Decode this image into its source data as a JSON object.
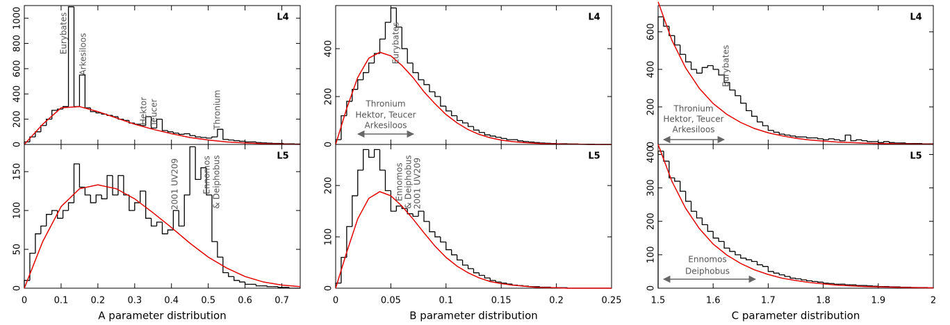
{
  "chart_data": [
    {
      "type": "histogram",
      "label": "L4",
      "color": "#000000",
      "bins": [
        0,
        0.015,
        0.03,
        0.045,
        0.06,
        0.075,
        0.09,
        0.105,
        0.12,
        0.135,
        0.15,
        0.165,
        0.18,
        0.195,
        0.21,
        0.225,
        0.24,
        0.255,
        0.27,
        0.285,
        0.3,
        0.315,
        0.33,
        0.345,
        0.36,
        0.375,
        0.39,
        0.405,
        0.42,
        0.435,
        0.45,
        0.465,
        0.48,
        0.495,
        0.51,
        0.525,
        0.54,
        0.555,
        0.57,
        0.585,
        0.6,
        0.615,
        0.63,
        0.645,
        0.66,
        0.675,
        0.69,
        0.705,
        0.72,
        0.735,
        0.75
      ],
      "values": [
        20,
        60,
        100,
        150,
        200,
        270,
        280,
        300,
        1090,
        300,
        550,
        290,
        260,
        250,
        240,
        230,
        220,
        200,
        190,
        170,
        160,
        150,
        220,
        130,
        200,
        110,
        100,
        90,
        80,
        85,
        70,
        60,
        55,
        50,
        60,
        120,
        40,
        35,
        30,
        25,
        20,
        20,
        15,
        12,
        10,
        8,
        8,
        5,
        5,
        3
      ],
      "fit": {
        "color": "#e30000",
        "x": [
          0,
          0.05,
          0.1,
          0.15,
          0.2,
          0.25,
          0.3,
          0.35,
          0.4,
          0.45,
          0.5,
          0.55,
          0.6,
          0.65,
          0.7,
          0.75
        ],
        "values": [
          0,
          160,
          290,
          300,
          260,
          210,
          160,
          120,
          85,
          55,
          35,
          20,
          12,
          6,
          3,
          1
        ]
      },
      "xlim": [
        0,
        0.75
      ],
      "ylim": [
        0,
        1100
      ],
      "yticks": [
        0,
        200,
        400,
        600,
        800,
        1000
      ],
      "annotations": [
        "Eurybates",
        "Arkesiloos",
        "Hektor",
        "Teucer",
        "Thronium"
      ]
    },
    {
      "type": "histogram",
      "label": "L5",
      "color": "#000000",
      "bins": [
        0,
        0.015,
        0.03,
        0.045,
        0.06,
        0.075,
        0.09,
        0.105,
        0.12,
        0.135,
        0.15,
        0.165,
        0.18,
        0.195,
        0.21,
        0.225,
        0.24,
        0.255,
        0.27,
        0.285,
        0.3,
        0.315,
        0.33,
        0.345,
        0.36,
        0.375,
        0.39,
        0.405,
        0.42,
        0.435,
        0.45,
        0.465,
        0.48,
        0.495,
        0.51,
        0.525,
        0.54,
        0.555,
        0.57,
        0.585,
        0.6,
        0.615,
        0.63,
        0.645,
        0.66,
        0.675,
        0.69,
        0.705,
        0.72,
        0.735,
        0.75
      ],
      "values": [
        10,
        45,
        70,
        80,
        95,
        100,
        90,
        100,
        110,
        160,
        130,
        120,
        110,
        120,
        115,
        145,
        120,
        145,
        120,
        100,
        110,
        125,
        90,
        80,
        85,
        70,
        75,
        100,
        80,
        120,
        182,
        140,
        155,
        120,
        60,
        40,
        20,
        15,
        10,
        8,
        5,
        5,
        3,
        3,
        2,
        2,
        1,
        1,
        0,
        0
      ],
      "fit": {
        "color": "#e30000",
        "x": [
          0,
          0.05,
          0.1,
          0.15,
          0.2,
          0.25,
          0.3,
          0.35,
          0.4,
          0.45,
          0.5,
          0.55,
          0.6,
          0.65,
          0.7,
          0.75
        ],
        "values": [
          0,
          60,
          105,
          128,
          133,
          128,
          115,
          97,
          78,
          58,
          40,
          26,
          15,
          8,
          4,
          2
        ]
      },
      "xlim": [
        0,
        0.75
      ],
      "ylim": [
        0,
        185
      ],
      "yticks": [
        0,
        50,
        100,
        150
      ],
      "xticks": [
        0,
        0.1,
        0.2,
        0.3,
        0.4,
        0.5,
        0.6,
        0.7
      ],
      "xlabel": "A parameter distribution",
      "annotations": [
        "2001 UV209",
        "Ennomos",
        "& Deiphobus"
      ]
    },
    {
      "type": "histogram",
      "label": "L4",
      "color": "#000000",
      "bins": [
        0,
        0.005,
        0.01,
        0.015,
        0.02,
        0.025,
        0.03,
        0.035,
        0.04,
        0.045,
        0.05,
        0.055,
        0.06,
        0.065,
        0.07,
        0.075,
        0.08,
        0.085,
        0.09,
        0.095,
        0.1,
        0.105,
        0.11,
        0.115,
        0.12,
        0.125,
        0.13,
        0.135,
        0.14,
        0.145,
        0.15,
        0.155,
        0.16,
        0.165,
        0.17,
        0.175,
        0.18,
        0.185,
        0.19,
        0.195,
        0.2,
        0.205,
        0.21,
        0.215,
        0.22,
        0.225,
        0.23,
        0.235,
        0.24,
        0.245,
        0.25
      ],
      "values": [
        20,
        120,
        180,
        230,
        270,
        300,
        340,
        380,
        440,
        510,
        570,
        490,
        400,
        340,
        300,
        270,
        250,
        220,
        200,
        160,
        140,
        120,
        100,
        90,
        75,
        60,
        50,
        40,
        35,
        30,
        25,
        20,
        20,
        15,
        12,
        10,
        8,
        6,
        5,
        4,
        3,
        3,
        2,
        2,
        1,
        1,
        1,
        0,
        0,
        0
      ],
      "fit": {
        "color": "#e30000",
        "x": [
          0,
          0.01,
          0.02,
          0.03,
          0.04,
          0.05,
          0.06,
          0.07,
          0.08,
          0.09,
          0.1,
          0.11,
          0.12,
          0.13,
          0.14,
          0.15,
          0.16,
          0.17,
          0.18,
          0.19,
          0.2,
          0.21,
          0.22,
          0.23,
          0.24,
          0.25
        ],
        "values": [
          0,
          150,
          280,
          360,
          385,
          370,
          330,
          280,
          220,
          170,
          125,
          90,
          62,
          42,
          28,
          18,
          12,
          8,
          5,
          3,
          2,
          1,
          1,
          0,
          0,
          0
        ]
      },
      "xlim": [
        0,
        0.25
      ],
      "ylim": [
        0,
        580
      ],
      "yticks": [
        0,
        200,
        400
      ],
      "annotations": [
        "Eurybates",
        "Thronium",
        "Hektor, Teucer",
        "Arkesiloos"
      ]
    },
    {
      "type": "histogram",
      "label": "L5",
      "color": "#000000",
      "bins": [
        0,
        0.005,
        0.01,
        0.015,
        0.02,
        0.025,
        0.03,
        0.035,
        0.04,
        0.045,
        0.05,
        0.055,
        0.06,
        0.065,
        0.07,
        0.075,
        0.08,
        0.085,
        0.09,
        0.095,
        0.1,
        0.105,
        0.11,
        0.115,
        0.12,
        0.125,
        0.13,
        0.135,
        0.14,
        0.145,
        0.15,
        0.155,
        0.16,
        0.165,
        0.17,
        0.175,
        0.18,
        0.185,
        0.19,
        0.195,
        0.2,
        0.205,
        0.21,
        0.215,
        0.22,
        0.225,
        0.23,
        0.235,
        0.24,
        0.245,
        0.25
      ],
      "values": [
        10,
        60,
        120,
        180,
        230,
        270,
        255,
        270,
        230,
        190,
        150,
        160,
        155,
        145,
        140,
        150,
        130,
        110,
        100,
        90,
        75,
        65,
        55,
        45,
        38,
        30,
        25,
        20,
        15,
        12,
        10,
        8,
        6,
        5,
        4,
        3,
        3,
        2,
        2,
        1,
        1,
        1,
        0,
        0,
        0,
        0,
        0,
        0,
        0,
        0
      ],
      "fit": {
        "color": "#e30000",
        "x": [
          0,
          0.01,
          0.02,
          0.03,
          0.04,
          0.05,
          0.06,
          0.07,
          0.08,
          0.09,
          0.1,
          0.11,
          0.12,
          0.13,
          0.14,
          0.15,
          0.16,
          0.17,
          0.18,
          0.19,
          0.2,
          0.21,
          0.22,
          0.23,
          0.24,
          0.25
        ],
        "values": [
          0,
          70,
          135,
          175,
          188,
          180,
          160,
          135,
          108,
          82,
          60,
          43,
          30,
          20,
          13,
          9,
          6,
          4,
          2,
          1,
          1,
          0,
          0,
          0,
          0,
          0
        ]
      },
      "xlim": [
        0,
        0.25
      ],
      "ylim": [
        0,
        280
      ],
      "yticks": [
        0,
        100,
        200
      ],
      "xticks": [
        0,
        0.05,
        0.1,
        0.15,
        0.2,
        0.25
      ],
      "xlabel": "B parameter distribution",
      "annotations": [
        "Ennomos",
        "& Deiphobus",
        "2001 UV209"
      ]
    },
    {
      "type": "histogram",
      "label": "L4",
      "color": "#000000",
      "bins": [
        1.5,
        1.51,
        1.52,
        1.53,
        1.54,
        1.55,
        1.56,
        1.57,
        1.58,
        1.59,
        1.6,
        1.61,
        1.62,
        1.63,
        1.64,
        1.65,
        1.66,
        1.67,
        1.68,
        1.69,
        1.7,
        1.71,
        1.72,
        1.73,
        1.74,
        1.75,
        1.76,
        1.77,
        1.78,
        1.79,
        1.8,
        1.81,
        1.82,
        1.83,
        1.84,
        1.85,
        1.86,
        1.87,
        1.88,
        1.89,
        1.9,
        1.91,
        1.92,
        1.93,
        1.94,
        1.95,
        1.96,
        1.97,
        1.98,
        1.99,
        2
      ],
      "values": [
        680,
        630,
        580,
        530,
        480,
        440,
        400,
        380,
        410,
        420,
        400,
        370,
        330,
        290,
        260,
        220,
        180,
        150,
        120,
        100,
        75,
        65,
        55,
        50,
        45,
        40,
        40,
        35,
        35,
        30,
        25,
        30,
        25,
        20,
        50,
        20,
        25,
        20,
        15,
        15,
        10,
        15,
        10,
        8,
        8,
        5,
        5,
        5,
        3,
        3
      ],
      "fit": {
        "color": "#e30000",
        "x": [
          1.5,
          1.525,
          1.55,
          1.575,
          1.6,
          1.625,
          1.65,
          1.675,
          1.7,
          1.725,
          1.75,
          1.775,
          1.8,
          1.825,
          1.85,
          1.875,
          1.9,
          1.925,
          1.95,
          1.975,
          2
        ],
        "values": [
          760,
          555,
          408,
          298,
          218,
          160,
          117,
          85,
          62,
          46,
          33,
          24,
          18,
          13,
          10,
          7,
          5,
          4,
          3,
          2,
          1.5
        ]
      },
      "xlim": [
        1.5,
        2
      ],
      "ylim": [
        0,
        740
      ],
      "yticks": [
        0,
        200,
        400,
        600
      ],
      "annotations": [
        "Eurybates",
        "Thronium",
        "Hektor, Teucer",
        "Arkesiloos"
      ]
    },
    {
      "type": "histogram",
      "label": "L5",
      "color": "#000000",
      "bins": [
        1.5,
        1.51,
        1.52,
        1.53,
        1.54,
        1.55,
        1.56,
        1.57,
        1.58,
        1.59,
        1.6,
        1.61,
        1.62,
        1.63,
        1.64,
        1.65,
        1.66,
        1.67,
        1.68,
        1.69,
        1.7,
        1.71,
        1.72,
        1.73,
        1.74,
        1.75,
        1.76,
        1.77,
        1.78,
        1.79,
        1.8,
        1.81,
        1.82,
        1.83,
        1.84,
        1.85,
        1.86,
        1.87,
        1.88,
        1.89,
        1.9,
        1.91,
        1.92,
        1.93,
        1.94,
        1.95,
        1.96,
        1.97,
        1.98,
        1.99,
        2
      ],
      "values": [
        410,
        380,
        330,
        320,
        290,
        260,
        230,
        210,
        190,
        170,
        150,
        140,
        120,
        110,
        100,
        90,
        85,
        80,
        70,
        65,
        50,
        45,
        40,
        35,
        30,
        28,
        25,
        22,
        20,
        18,
        15,
        14,
        12,
        12,
        10,
        10,
        8,
        8,
        7,
        6,
        5,
        5,
        4,
        4,
        3,
        3,
        2,
        2,
        2,
        1
      ],
      "fit": {
        "color": "#e30000",
        "x": [
          1.5,
          1.525,
          1.55,
          1.575,
          1.6,
          1.625,
          1.65,
          1.675,
          1.7,
          1.725,
          1.75,
          1.775,
          1.8,
          1.825,
          1.85,
          1.875,
          1.9,
          1.925,
          1.95,
          1.975,
          2
        ],
        "values": [
          430,
          320,
          239,
          178,
          132,
          99,
          74,
          55,
          41,
          30,
          23,
          17,
          13,
          9,
          7,
          5,
          4,
          3,
          2,
          1.5,
          1
        ]
      },
      "xlim": [
        1.5,
        2
      ],
      "ylim": [
        0,
        430
      ],
      "yticks": [
        0,
        100,
        200,
        300,
        400
      ],
      "xticks": [
        1.5,
        1.6,
        1.7,
        1.8,
        1.9,
        2
      ],
      "xlabel": "C parameter distribution",
      "annotations": [
        "Ennomos",
        "Deiphobus"
      ]
    }
  ]
}
